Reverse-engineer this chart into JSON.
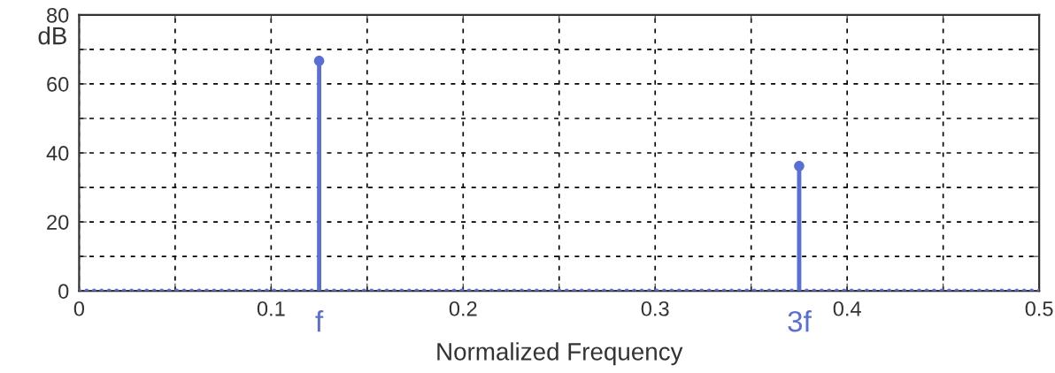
{
  "chart_data": {
    "type": "lollipop",
    "xlabel": "Normalized Frequency",
    "ylabel": "dB",
    "x": [
      0,
      0.0039,
      0.0078,
      0.0117,
      0.0156,
      0.0195,
      0.0234,
      0.0273,
      0.0313,
      0.0352,
      0.0391,
      0.043,
      0.0469,
      0.0508,
      0.0547,
      0.0586,
      0.0625,
      0.0664,
      0.0703,
      0.0742,
      0.0781,
      0.082,
      0.0859,
      0.0898,
      0.0938,
      0.0977,
      0.1016,
      0.1055,
      0.1094,
      0.1133,
      0.1172,
      0.1211,
      0.125,
      0.1289,
      0.1328,
      0.1367,
      0.1406,
      0.1445,
      0.1484,
      0.1523,
      0.1563,
      0.1602,
      0.1641,
      0.168,
      0.1719,
      0.1758,
      0.1797,
      0.1836,
      0.1875,
      0.1914,
      0.1953,
      0.1992,
      0.2031,
      0.207,
      0.2109,
      0.2148,
      0.2188,
      0.2227,
      0.2266,
      0.2305,
      0.2344,
      0.2383,
      0.2422,
      0.2461,
      0.25,
      0.2539,
      0.2578,
      0.2617,
      0.2656,
      0.2695,
      0.2734,
      0.2773,
      0.2813,
      0.2852,
      0.2891,
      0.293,
      0.2969,
      0.3008,
      0.3047,
      0.3086,
      0.3125,
      0.3164,
      0.3203,
      0.3242,
      0.3281,
      0.332,
      0.3359,
      0.3398,
      0.3438,
      0.3477,
      0.3516,
      0.3555,
      0.3594,
      0.3633,
      0.3672,
      0.3711,
      0.375,
      0.3789,
      0.3828,
      0.3867,
      0.3906,
      0.3945,
      0.3984,
      0.4023,
      0.4063,
      0.4102,
      0.4141,
      0.418,
      0.4219,
      0.4258,
      0.4297,
      0.4336,
      0.4375,
      0.4414,
      0.4453,
      0.4492,
      0.4531,
      0.457,
      0.4609,
      0.4648,
      0.4688,
      0.4727,
      0.4766,
      0.4805,
      0.4844,
      0.4883,
      0.4922,
      0.4961,
      0.5
    ],
    "series": [
      {
        "color": "#5a6fd6",
        "values": [
          0,
          0,
          0,
          0,
          0,
          0,
          0,
          0,
          0,
          0,
          0,
          0,
          0,
          0,
          0,
          0,
          0,
          0,
          0,
          0,
          0,
          0,
          0,
          0,
          0,
          0,
          0,
          0,
          0,
          0,
          0,
          0,
          66.7,
          0,
          0,
          0,
          0,
          0,
          0,
          0,
          0,
          0,
          0,
          0,
          0,
          0,
          0,
          0,
          0,
          0,
          0,
          0,
          0,
          0,
          0,
          0,
          0,
          0,
          0,
          0,
          0,
          0,
          0,
          0,
          0,
          0,
          0,
          0,
          0,
          0,
          0,
          0,
          0,
          0,
          0,
          0,
          0,
          0,
          0,
          0,
          0,
          0,
          0,
          0,
          0,
          0,
          0,
          0,
          0,
          0,
          0,
          0,
          0,
          0,
          0,
          0,
          36.2,
          0,
          0,
          0,
          0,
          0,
          0,
          0,
          0,
          0,
          0,
          0,
          0,
          0,
          0,
          0,
          0,
          0,
          0,
          0,
          0,
          0,
          0,
          0,
          0,
          0,
          0,
          0,
          0,
          0,
          0,
          0,
          0
        ]
      }
    ],
    "xlim": [
      0,
      0.5
    ],
    "xticks": [
      0,
      {
        "value": 0.05,
        "label": null
      },
      0.1,
      {
        "value": 0.15,
        "label": null
      },
      0.2,
      {
        "value": 0.25,
        "label": null
      },
      0.3,
      {
        "value": 0.35,
        "label": null
      },
      0.4,
      {
        "value": 0.45,
        "label": null
      },
      0.5
    ],
    "ylim": [
      0,
      80
    ],
    "yticks": [
      0,
      {
        "value": 10,
        "label": null
      },
      20,
      {
        "value": 30,
        "label": null
      },
      40,
      {
        "value": 50,
        "label": null
      },
      60,
      {
        "value": 70,
        "label": null
      },
      80
    ],
    "grid": true,
    "marker": "circle",
    "annotations": [
      "f",
      "3f"
    ]
  }
}
